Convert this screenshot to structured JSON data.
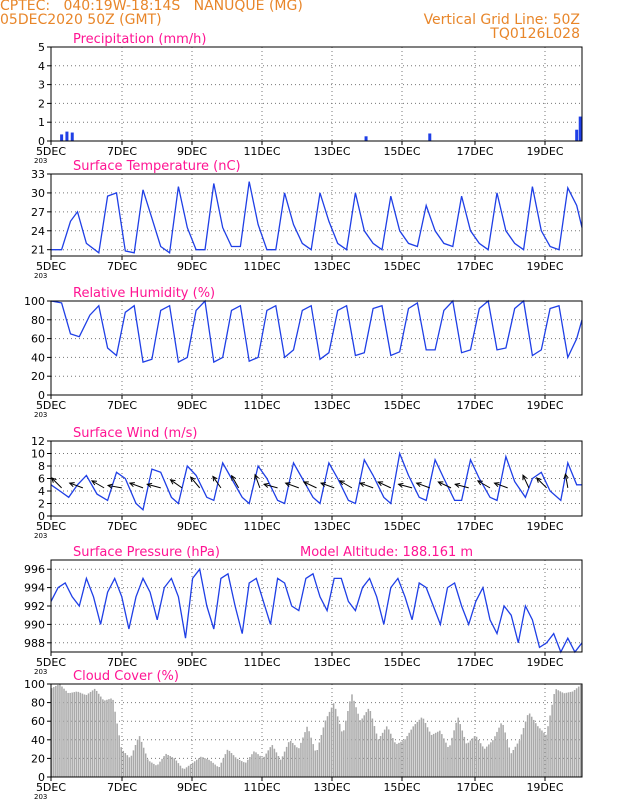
{
  "header": {
    "line1_left": "CPTEC:   040:19W-18:14S   NANUQUE (MG)",
    "line2_left": "05DEC2020 50Z (GMT)",
    "line2_right": "Vertical Grid Line: 50Z",
    "line3_right": "TQ0126L028",
    "header_color": "#e8862a"
  },
  "colors": {
    "title": "#ff1493",
    "line": "#1f3fe6",
    "cloud": "#a9a9a9",
    "frame": "#000000",
    "arrow": "#000000"
  },
  "x_ticks": [
    "5DEC",
    "7DEC",
    "9DEC",
    "11DEC",
    "13DEC",
    "15DEC",
    "17DEC",
    "19DEC"
  ],
  "x_cut_label": "203",
  "chart_data": [
    {
      "type": "bar",
      "title": "Precipitation (mm/h)",
      "ylim": [
        0,
        5
      ],
      "yticks": [
        "0",
        "1",
        "2",
        "3",
        "4",
        "5"
      ],
      "x_range_days": [
        5,
        20
      ],
      "x": [
        5.3,
        5.45,
        5.6,
        13.9,
        15.7,
        19.85,
        19.95
      ],
      "values": [
        0.35,
        0.5,
        0.45,
        0.25,
        0.4,
        0.6,
        1.3
      ]
    },
    {
      "type": "line",
      "title": "Surface Temperature (nC)",
      "ylim": [
        20,
        33
      ],
      "yticks": [
        "21",
        "24",
        "27",
        "30",
        "33"
      ],
      "x_range_days": [
        5,
        20
      ],
      "series": [
        {
          "x": [
            5.0,
            5.3,
            5.55,
            5.75,
            6.0,
            6.35,
            6.6,
            6.85,
            7.1,
            7.35,
            7.6,
            7.85,
            8.1,
            8.35,
            8.6,
            8.85,
            9.1,
            9.35,
            9.6,
            9.85,
            10.1,
            10.35,
            10.6,
            10.85,
            11.1,
            11.35,
            11.6,
            11.85,
            12.1,
            12.35,
            12.6,
            12.85,
            13.1,
            13.35,
            13.6,
            13.85,
            14.1,
            14.35,
            14.6,
            14.85,
            15.1,
            15.35,
            15.6,
            15.85,
            16.1,
            16.35,
            16.6,
            16.85,
            17.1,
            17.35,
            17.6,
            17.85,
            18.1,
            18.35,
            18.6,
            18.85,
            19.1,
            19.35,
            19.6,
            19.85,
            20.0
          ],
          "values": [
            21.0,
            21.0,
            25.5,
            27.0,
            22.0,
            20.5,
            29.5,
            30.0,
            20.8,
            20.5,
            30.5,
            26.0,
            21.5,
            20.5,
            31.0,
            24.5,
            21.0,
            21.0,
            31.5,
            24.5,
            21.5,
            21.5,
            31.8,
            25.0,
            21.0,
            21.0,
            30.0,
            25.0,
            22.0,
            21.0,
            30.0,
            25.5,
            22.0,
            21.0,
            30.0,
            24.0,
            22.0,
            21.0,
            29.5,
            24.0,
            22.0,
            21.5,
            28.0,
            24.0,
            22.0,
            21.5,
            29.5,
            24.0,
            22.0,
            21.0,
            30.0,
            24.0,
            22.0,
            21.0,
            31.0,
            24.0,
            21.5,
            21.0,
            30.8,
            28.0,
            24.5
          ]
        }
      ]
    },
    {
      "type": "line",
      "title": "Relative Humidity (%)",
      "ylim": [
        0,
        100
      ],
      "yticks": [
        "0",
        "20",
        "40",
        "60",
        "80",
        "100"
      ],
      "x_range_days": [
        5,
        20
      ],
      "series": [
        {
          "x": [
            5.0,
            5.3,
            5.55,
            5.8,
            6.1,
            6.35,
            6.6,
            6.85,
            7.1,
            7.35,
            7.6,
            7.85,
            8.1,
            8.35,
            8.6,
            8.85,
            9.1,
            9.35,
            9.6,
            9.85,
            10.1,
            10.35,
            10.6,
            10.85,
            11.1,
            11.35,
            11.6,
            11.85,
            12.1,
            12.35,
            12.6,
            12.85,
            13.1,
            13.35,
            13.6,
            13.85,
            14.1,
            14.35,
            14.6,
            14.85,
            15.1,
            15.35,
            15.6,
            15.85,
            16.1,
            16.35,
            16.6,
            16.85,
            17.1,
            17.35,
            17.6,
            17.85,
            18.1,
            18.35,
            18.6,
            18.85,
            19.1,
            19.35,
            19.6,
            19.85,
            20.0
          ],
          "values": [
            100,
            98,
            65,
            62,
            85,
            95,
            50,
            42,
            88,
            95,
            35,
            38,
            90,
            95,
            35,
            40,
            90,
            100,
            35,
            40,
            90,
            95,
            36,
            40,
            90,
            95,
            40,
            48,
            90,
            95,
            38,
            45,
            90,
            95,
            42,
            45,
            92,
            95,
            42,
            46,
            92,
            98,
            48,
            48,
            90,
            100,
            45,
            48,
            92,
            100,
            48,
            50,
            92,
            100,
            42,
            48,
            92,
            95,
            40,
            60,
            80
          ]
        }
      ]
    },
    {
      "type": "line",
      "title": "Surface Wind (m/s)",
      "ylim": [
        0,
        12
      ],
      "yticks": [
        "0",
        "2",
        "4",
        "6",
        "8",
        "10",
        "12"
      ],
      "x_range_days": [
        5,
        20
      ],
      "series": [
        {
          "x": [
            5.0,
            5.25,
            5.5,
            5.75,
            6.0,
            6.3,
            6.6,
            6.85,
            7.1,
            7.4,
            7.6,
            7.85,
            8.1,
            8.4,
            8.6,
            8.85,
            9.1,
            9.4,
            9.6,
            9.85,
            10.1,
            10.4,
            10.6,
            10.85,
            11.1,
            11.4,
            11.6,
            11.85,
            12.1,
            12.4,
            12.6,
            12.85,
            13.1,
            13.4,
            13.6,
            13.85,
            14.1,
            14.4,
            14.6,
            14.85,
            15.1,
            15.4,
            15.6,
            15.85,
            16.1,
            16.4,
            16.6,
            16.85,
            17.1,
            17.4,
            17.6,
            17.85,
            18.1,
            18.4,
            18.6,
            18.85,
            19.1,
            19.4,
            19.6,
            19.85,
            20.0
          ],
          "values": [
            5.0,
            4.0,
            3.0,
            5.0,
            6.5,
            3.5,
            2.5,
            7.0,
            6.0,
            2.0,
            1.0,
            7.5,
            7.0,
            3.0,
            2.0,
            8.0,
            6.5,
            3.0,
            2.5,
            8.5,
            6.0,
            3.0,
            2.0,
            8.0,
            6.0,
            2.5,
            2.0,
            8.5,
            6.0,
            3.0,
            2.0,
            8.5,
            6.0,
            2.5,
            2.0,
            9.0,
            6.5,
            3.0,
            2.0,
            10.0,
            6.5,
            3.0,
            2.5,
            9.0,
            6.0,
            2.5,
            2.5,
            9.0,
            6.0,
            3.0,
            2.5,
            9.5,
            5.5,
            3.0,
            6.0,
            7.0,
            4.0,
            2.5,
            8.5,
            5.0,
            5.0
          ]
        }
      ],
      "arrows_x": [
        5.3,
        5.9,
        6.5,
        7.0,
        7.6,
        8.1,
        8.7,
        9.2,
        9.8,
        10.3,
        10.9,
        11.4,
        12.0,
        12.5,
        13.0,
        13.5,
        14.1,
        14.6,
        15.2,
        15.7,
        16.3,
        16.8,
        17.4,
        17.9,
        18.5,
        19.0,
        19.6
      ],
      "arrows_angle": [
        225,
        200,
        210,
        190,
        200,
        195,
        215,
        230,
        235,
        240,
        250,
        195,
        200,
        205,
        200,
        210,
        200,
        205,
        195,
        200,
        205,
        195,
        210,
        200,
        245,
        225,
        260
      ]
    },
    {
      "type": "line",
      "title": "Surface Pressure (hPa)",
      "subtitle": "Model Altitude: 188.161 m",
      "ylim": [
        987,
        997
      ],
      "yticks": [
        "988",
        "990",
        "992",
        "994",
        "996"
      ],
      "x_range_days": [
        5,
        20
      ],
      "series": [
        {
          "x": [
            5.0,
            5.2,
            5.4,
            5.6,
            5.8,
            6.0,
            6.2,
            6.4,
            6.6,
            6.8,
            7.0,
            7.2,
            7.4,
            7.6,
            7.8,
            8.0,
            8.2,
            8.4,
            8.6,
            8.8,
            9.0,
            9.2,
            9.4,
            9.6,
            9.8,
            10.0,
            10.2,
            10.4,
            10.6,
            10.8,
            11.0,
            11.2,
            11.4,
            11.6,
            11.8,
            12.0,
            12.2,
            12.4,
            12.6,
            12.8,
            13.0,
            13.2,
            13.4,
            13.6,
            13.8,
            14.0,
            14.2,
            14.4,
            14.6,
            14.8,
            15.0,
            15.2,
            15.4,
            15.6,
            15.8,
            16.0,
            16.2,
            16.4,
            16.6,
            16.8,
            17.0,
            17.2,
            17.4,
            17.6,
            17.8,
            18.0,
            18.2,
            18.4,
            18.6,
            18.8,
            19.0,
            19.2,
            19.4,
            19.6,
            19.8,
            20.0
          ],
          "values": [
            992.5,
            994.0,
            994.5,
            993.0,
            992.0,
            995.0,
            993.0,
            990.0,
            993.5,
            995.0,
            993.0,
            989.5,
            993.0,
            995.0,
            993.5,
            990.5,
            994.0,
            995.0,
            993.0,
            988.5,
            995.0,
            996.0,
            992.0,
            989.5,
            995.0,
            995.5,
            992.0,
            989.0,
            994.5,
            995.0,
            992.5,
            990.0,
            995.0,
            994.5,
            992.0,
            991.5,
            995.0,
            995.5,
            993.0,
            991.5,
            995.0,
            995.0,
            992.5,
            991.5,
            994.0,
            995.0,
            993.0,
            990.0,
            994.0,
            995.0,
            993.0,
            990.5,
            994.5,
            994.0,
            992.0,
            990.0,
            994.0,
            994.5,
            992.0,
            990.0,
            992.5,
            994.0,
            990.5,
            989.0,
            992.0,
            991.0,
            988.0,
            992.0,
            990.5,
            987.5,
            988.0,
            989.0,
            987.0,
            988.5,
            986.5,
            988.0
          ]
        }
      ]
    },
    {
      "type": "area",
      "title": "Cloud Cover (%)",
      "ylim": [
        0,
        100
      ],
      "yticks": [
        "0",
        "20",
        "40",
        "60",
        "80",
        "100"
      ],
      "x_range_days": [
        5,
        20
      ],
      "x": [
        5.0,
        5.25,
        5.5,
        5.75,
        6.0,
        6.25,
        6.5,
        6.75,
        7.0,
        7.25,
        7.5,
        7.75,
        8.0,
        8.25,
        8.5,
        8.75,
        9.0,
        9.25,
        9.5,
        9.75,
        10.0,
        10.25,
        10.5,
        10.75,
        11.0,
        11.25,
        11.5,
        11.75,
        12.0,
        12.25,
        12.5,
        12.75,
        13.0,
        13.25,
        13.5,
        13.75,
        14.0,
        14.25,
        14.5,
        14.75,
        15.0,
        15.25,
        15.5,
        15.75,
        16.0,
        16.25,
        16.5,
        16.75,
        17.0,
        17.25,
        17.5,
        17.75,
        18.0,
        18.25,
        18.5,
        18.75,
        19.0,
        19.25,
        19.5,
        19.75,
        20.0
      ],
      "values": [
        95,
        100,
        90,
        92,
        88,
        95,
        82,
        85,
        30,
        20,
        45,
        18,
        12,
        25,
        20,
        8,
        15,
        22,
        18,
        10,
        30,
        20,
        15,
        28,
        20,
        35,
        18,
        40,
        30,
        55,
        25,
        60,
        80,
        45,
        90,
        60,
        75,
        40,
        55,
        35,
        40,
        55,
        65,
        45,
        50,
        30,
        65,
        35,
        45,
        30,
        40,
        60,
        25,
        40,
        70,
        55,
        45,
        95,
        90,
        92,
        100
      ]
    }
  ]
}
